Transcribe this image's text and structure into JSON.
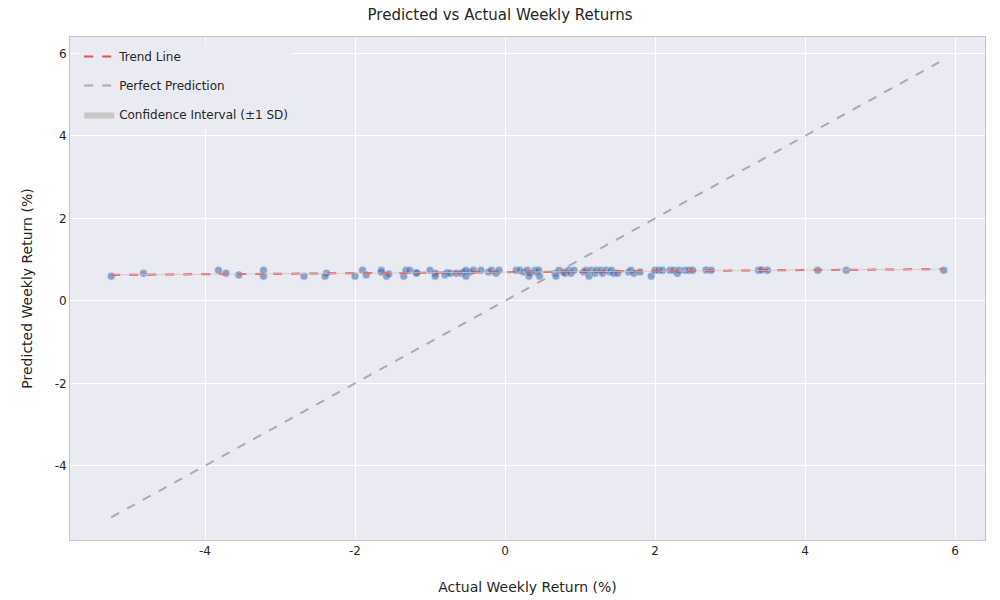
{
  "chart_data": {
    "type": "scatter",
    "title": "Predicted vs Actual Weekly Returns",
    "x_label": "Actual Weekly Return (%)",
    "y_label": "Predicted Weekly Return (%)",
    "xlim": [
      -5.8,
      6.4
    ],
    "ylim": [
      -5.8,
      6.4
    ],
    "xticks": [
      -4,
      -2,
      0,
      2,
      4,
      6
    ],
    "yticks": [
      -4,
      -2,
      0,
      2,
      4,
      6
    ],
    "grid": true,
    "legend": "upper left",
    "points": {
      "color": "#4c72b0",
      "marker": "circle",
      "x": [
        -5.25,
        -4.82,
        -3.82,
        -3.72,
        -3.55,
        -3.22,
        -3.22,
        -2.68,
        -2.38,
        -2.4,
        -2.0,
        -1.9,
        -1.85,
        -1.65,
        -1.65,
        -1.58,
        -1.55,
        -1.35,
        -1.32,
        -1.27,
        -1.18,
        -1.18,
        -1.0,
        -0.93,
        -0.93,
        -0.8,
        -0.77,
        -0.73,
        -0.65,
        -0.58,
        -0.55,
        -0.52,
        -0.52,
        -0.47,
        -0.42,
        -0.32,
        -0.22,
        -0.18,
        -0.12,
        -0.08,
        0.15,
        0.2,
        0.25,
        0.3,
        0.32,
        0.33,
        0.4,
        0.42,
        0.45,
        0.46,
        0.67,
        0.68,
        0.72,
        0.78,
        0.8,
        0.85,
        0.88,
        0.92,
        1.05,
        1.08,
        1.12,
        1.15,
        1.2,
        1.22,
        1.28,
        1.3,
        1.35,
        1.4,
        1.42,
        1.45,
        1.5,
        1.65,
        1.68,
        1.72,
        1.8,
        1.95,
        2.0,
        2.05,
        2.1,
        2.2,
        2.25,
        2.3,
        2.32,
        2.4,
        2.45,
        2.5,
        2.68,
        2.75,
        3.38,
        3.42,
        3.5,
        4.17,
        4.55,
        5.85
      ],
      "y": [
        0.6,
        0.67,
        0.74,
        0.67,
        0.63,
        0.74,
        0.6,
        0.6,
        0.67,
        0.6,
        0.6,
        0.74,
        0.63,
        0.74,
        0.7,
        0.6,
        0.65,
        0.6,
        0.74,
        0.74,
        0.67,
        0.68,
        0.74,
        0.67,
        0.6,
        0.63,
        0.68,
        0.67,
        0.67,
        0.67,
        0.7,
        0.74,
        0.6,
        0.7,
        0.74,
        0.74,
        0.7,
        0.74,
        0.67,
        0.74,
        0.74,
        0.74,
        0.7,
        0.74,
        0.6,
        0.67,
        0.74,
        0.7,
        0.74,
        0.6,
        0.67,
        0.6,
        0.74,
        0.7,
        0.67,
        0.74,
        0.67,
        0.74,
        0.7,
        0.74,
        0.6,
        0.74,
        0.67,
        0.74,
        0.74,
        0.67,
        0.74,
        0.7,
        0.74,
        0.67,
        0.67,
        0.7,
        0.74,
        0.67,
        0.7,
        0.6,
        0.74,
        0.74,
        0.74,
        0.74,
        0.74,
        0.67,
        0.74,
        0.74,
        0.74,
        0.74,
        0.75,
        0.74,
        0.74,
        0.75,
        0.74,
        0.74,
        0.74,
        0.74
      ]
    },
    "series": [
      {
        "name": "Trend Line",
        "type": "line",
        "color": "#e8342f",
        "line_style": "dashed",
        "x": [
          -5.25,
          5.85
        ],
        "values": [
          0.63,
          0.77
        ]
      },
      {
        "name": "Perfect Prediction",
        "type": "line",
        "color": "#a0a0a0",
        "line_style": "dashed",
        "x": [
          -5.25,
          5.85
        ],
        "values": [
          -5.25,
          5.85
        ]
      },
      {
        "name": "Confidence Interval (±1 SD)",
        "type": "band",
        "color": "#c8c8c8",
        "x": [
          -5.25,
          5.85
        ],
        "lower": [
          0.62,
          0.76
        ],
        "upper": [
          0.64,
          0.78
        ]
      }
    ]
  }
}
